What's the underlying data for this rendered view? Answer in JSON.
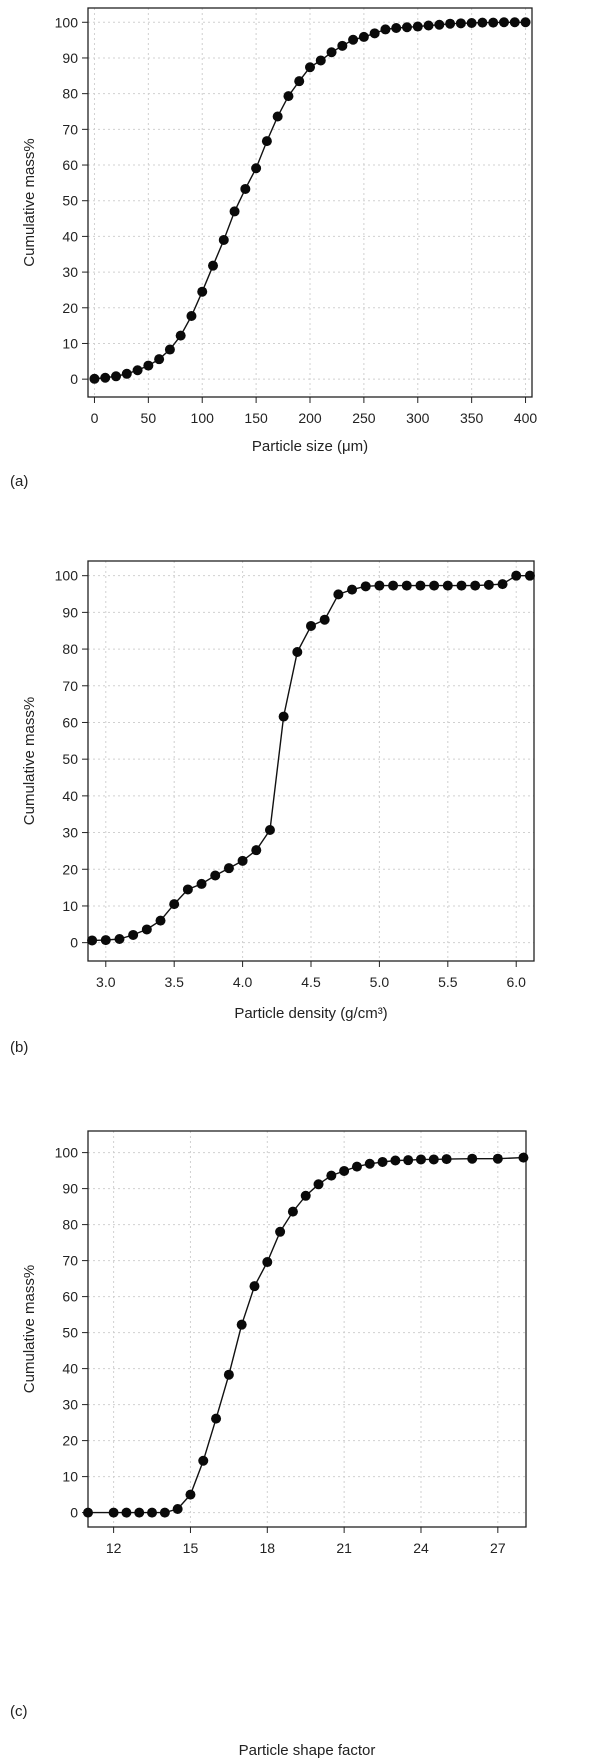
{
  "chart_data": [
    {
      "panel_label": "(a)",
      "type": "line",
      "xlabel": "Particle size (μm)",
      "ylabel": "Cumulative mass%",
      "xlim": [
        -6,
        406
      ],
      "ylim": [
        -5,
        104
      ],
      "xticks": [
        0,
        50,
        100,
        150,
        200,
        250,
        300,
        350,
        400
      ],
      "xtick_labels": [
        "0",
        "50",
        "100",
        "150",
        "200",
        "250",
        "300",
        "350",
        "400"
      ],
      "yticks": [
        0,
        10,
        20,
        30,
        40,
        50,
        60,
        70,
        80,
        90,
        100
      ],
      "ytick_labels": [
        "0",
        "10",
        "20",
        "30",
        "40",
        "50",
        "60",
        "70",
        "80",
        "90",
        "100"
      ],
      "grid": true,
      "markers": "filled-circle",
      "series": [
        {
          "x": [
            0,
            10,
            20,
            30,
            40,
            50,
            60,
            70,
            80,
            90,
            100,
            110,
            120,
            130,
            140,
            150,
            160,
            170,
            180,
            190,
            200,
            210,
            220,
            230,
            240,
            250,
            260,
            270,
            280,
            290,
            300,
            310,
            320,
            330,
            340,
            350,
            360,
            370,
            380,
            390,
            400
          ],
          "y": [
            0.1,
            0.4,
            0.8,
            1.5,
            2.5,
            3.8,
            5.6,
            8.3,
            12.2,
            17.7,
            24.5,
            31.8,
            39.0,
            47.0,
            53.3,
            59.1,
            66.7,
            73.6,
            79.3,
            83.5,
            87.4,
            89.3,
            91.6,
            93.4,
            95.1,
            95.9,
            96.9,
            98.0,
            98.4,
            98.6,
            98.8,
            99.1,
            99.3,
            99.6,
            99.7,
            99.8,
            99.9,
            99.9,
            100.0,
            100.0,
            100.0
          ]
        }
      ]
    },
    {
      "panel_label": "(b)",
      "type": "line",
      "xlabel": "Particle density (g/cm³)",
      "ylabel": "Cumulative mass%",
      "xlim": [
        2.87,
        6.13
      ],
      "ylim": [
        -5,
        104
      ],
      "xticks": [
        3.0,
        3.5,
        4.0,
        4.5,
        5.0,
        5.5,
        6.0
      ],
      "xtick_labels": [
        "3.0",
        "3.5",
        "4.0",
        "4.5",
        "5.0",
        "5.5",
        "6.0"
      ],
      "yticks": [
        0,
        10,
        20,
        30,
        40,
        50,
        60,
        70,
        80,
        90,
        100
      ],
      "ytick_labels": [
        "0",
        "10",
        "20",
        "30",
        "40",
        "50",
        "60",
        "70",
        "80",
        "90",
        "100"
      ],
      "grid": true,
      "markers": "filled-circle",
      "series": [
        {
          "x": [
            2.9,
            3.0,
            3.1,
            3.2,
            3.3,
            3.4,
            3.5,
            3.6,
            3.7,
            3.8,
            3.9,
            4.0,
            4.1,
            4.2,
            4.3,
            4.4,
            4.5,
            4.6,
            4.7,
            4.8,
            4.9,
            5.0,
            5.1,
            5.2,
            5.3,
            5.4,
            5.5,
            5.6,
            5.7,
            5.8,
            5.9,
            6.0,
            6.1
          ],
          "y": [
            0.6,
            0.7,
            1.0,
            2.1,
            3.6,
            6.0,
            10.5,
            14.5,
            16.0,
            18.3,
            20.3,
            22.3,
            25.2,
            30.7,
            61.6,
            79.2,
            86.3,
            88.0,
            94.9,
            96.2,
            97.1,
            97.3,
            97.3,
            97.3,
            97.3,
            97.3,
            97.3,
            97.3,
            97.3,
            97.5,
            97.7,
            100.0,
            100.0
          ]
        }
      ]
    },
    {
      "panel_label": "(c)",
      "type": "line",
      "xlabel": "Particle shape factor",
      "ylabel": "Cumulative mass%",
      "xlim": [
        11.0,
        28.1
      ],
      "ylim": [
        -4,
        106
      ],
      "xticks": [
        12,
        15,
        18,
        21,
        24,
        27
      ],
      "xtick_labels": [
        "12",
        "15",
        "18",
        "21",
        "24",
        "27"
      ],
      "yticks": [
        0,
        10,
        20,
        30,
        40,
        50,
        60,
        70,
        80,
        90,
        100
      ],
      "ytick_labels": [
        "0",
        "10",
        "20",
        "30",
        "40",
        "50",
        "60",
        "70",
        "80",
        "90",
        "100"
      ],
      "grid": true,
      "markers": "filled-circle",
      "series": [
        {
          "x": [
            11.0,
            12.0,
            12.5,
            13.0,
            13.5,
            14.0,
            14.5,
            15.0,
            15.5,
            16.0,
            16.5,
            17.0,
            17.5,
            18.0,
            18.5,
            19.0,
            19.5,
            20.0,
            20.5,
            21.0,
            21.5,
            22.0,
            22.5,
            23.0,
            23.5,
            24.0,
            24.5,
            25.0,
            26.0,
            27.0,
            28.0
          ],
          "y": [
            0.0,
            0.0,
            0.0,
            0.0,
            0.0,
            0.0,
            1.0,
            5.0,
            14.4,
            26.1,
            38.3,
            52.2,
            62.9,
            69.6,
            78.0,
            83.6,
            88.0,
            91.2,
            93.6,
            94.9,
            96.1,
            96.9,
            97.4,
            97.8,
            97.9,
            98.1,
            98.1,
            98.2,
            98.3,
            98.3,
            98.6
          ]
        }
      ]
    }
  ]
}
